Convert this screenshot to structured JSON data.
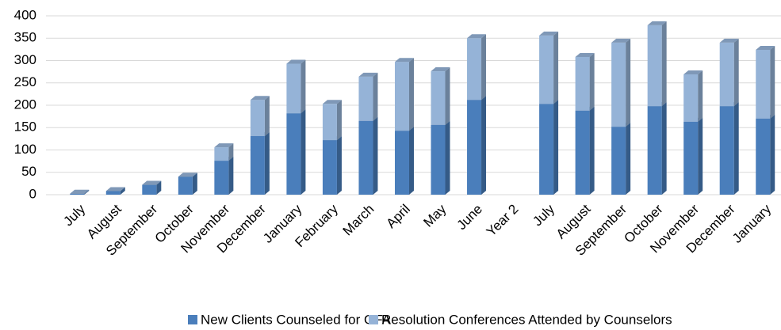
{
  "chart_data": {
    "type": "bar",
    "stacked": true,
    "categories": [
      "July",
      "August",
      "September",
      "October",
      "November",
      "December",
      "January",
      "February",
      "March",
      "April",
      "May",
      "June",
      "Year 2",
      "July",
      "August",
      "September",
      "October",
      "November",
      "December",
      "January"
    ],
    "series": [
      {
        "name": "New Clients Counseled for OFA",
        "color": "#4a7ebb",
        "values": [
          2,
          8,
          22,
          40,
          76,
          131,
          182,
          122,
          165,
          143,
          156,
          212,
          null,
          203,
          188,
          152,
          198,
          163,
          198,
          170
        ]
      },
      {
        "name": "Resolution Conferences Attended by Counselors",
        "color": "#95b3d7",
        "values": [
          0,
          0,
          0,
          0,
          30,
          81,
          111,
          81,
          99,
          154,
          120,
          138,
          null,
          153,
          120,
          188,
          181,
          106,
          142,
          154
        ]
      }
    ],
    "ylim": [
      0,
      400
    ],
    "yticks": [
      0,
      50,
      100,
      150,
      200,
      250,
      300,
      350,
      400
    ],
    "grid": true,
    "legend": "bottom"
  }
}
